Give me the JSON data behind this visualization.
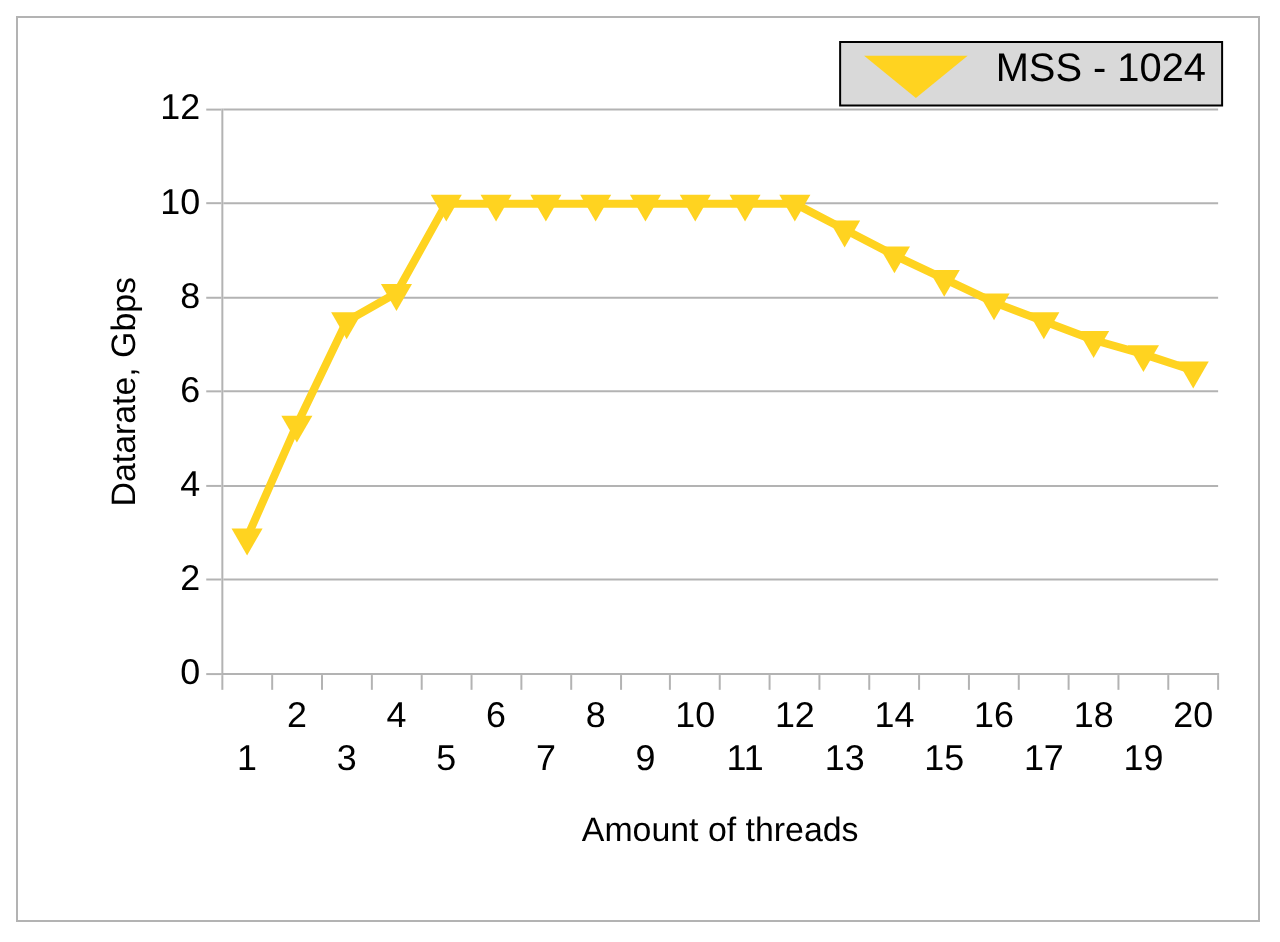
{
  "chart_data": {
    "type": "line",
    "xlabel": "Amount of threads",
    "ylabel": "Datarate, Gbps",
    "categories": [
      "1",
      "2",
      "3",
      "4",
      "5",
      "6",
      "7",
      "8",
      "9",
      "10",
      "11",
      "12",
      "13",
      "14",
      "15",
      "16",
      "17",
      "18",
      "19",
      "20"
    ],
    "series": [
      {
        "name": "MSS - 1024",
        "color": "#ffd320",
        "values": [
          2.9,
          5.3,
          7.5,
          8.1,
          10,
          10,
          10,
          10,
          10,
          10,
          10,
          10,
          9.45,
          8.9,
          8.4,
          7.9,
          7.5,
          7.1,
          6.8,
          6.45
        ]
      }
    ],
    "ylim": [
      0,
      12
    ],
    "yticks": [
      0,
      2,
      4,
      6,
      8,
      10,
      12
    ],
    "grid": "y",
    "legend": "top right",
    "marker": "triangle",
    "line_style": "solid"
  }
}
